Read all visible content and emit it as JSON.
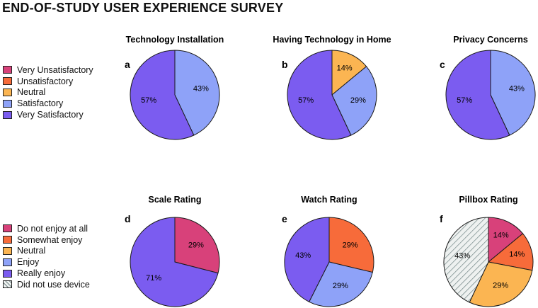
{
  "title": "END-OF-STUDY USER EXPERIENCE SURVEY",
  "legends": {
    "top": [
      {
        "label": "Very Unsatisfactory",
        "color": "#d8417a"
      },
      {
        "label": "Unsatisfactory",
        "color": "#f76b3a"
      },
      {
        "label": "Neutral",
        "color": "#fbb552"
      },
      {
        "label": "Satisfactory",
        "color": "#8ea2f8"
      },
      {
        "label": "Very Satisfactory",
        "color": "#7b5cf0"
      }
    ],
    "bottom": [
      {
        "label": "Do not enjoy at all",
        "color": "#d8417a"
      },
      {
        "label": "Somewhat enjoy",
        "color": "#f76b3a"
      },
      {
        "label": "Neutral",
        "color": "#fbb552"
      },
      {
        "label": "Enjoy",
        "color": "#8ea2f8"
      },
      {
        "label": "Really enjoy",
        "color": "#7b5cf0"
      },
      {
        "label": "Did not use device",
        "color": "#d3d7d7",
        "pattern": "hatch"
      }
    ]
  },
  "chart_data": [
    {
      "type": "pie",
      "letter": "a",
      "title": "Technology Installation",
      "slices": [
        {
          "category": "Satisfactory",
          "value": 43,
          "label": "43%",
          "color": "#8ea2f8"
        },
        {
          "category": "Very Satisfactory",
          "value": 57,
          "label": "57%",
          "color": "#7b5cf0"
        }
      ]
    },
    {
      "type": "pie",
      "letter": "b",
      "title": "Having Technology in Home",
      "slices": [
        {
          "category": "Neutral",
          "value": 14,
          "label": "14%",
          "color": "#fbb552"
        },
        {
          "category": "Satisfactory",
          "value": 29,
          "label": "29%",
          "color": "#8ea2f8"
        },
        {
          "category": "Very Satisfactory",
          "value": 57,
          "label": "57%",
          "color": "#7b5cf0"
        }
      ]
    },
    {
      "type": "pie",
      "letter": "c",
      "title": "Privacy Concerns",
      "slices": [
        {
          "category": "Satisfactory",
          "value": 43,
          "label": "43%",
          "color": "#8ea2f8"
        },
        {
          "category": "Very Satisfactory",
          "value": 57,
          "label": "57%",
          "color": "#7b5cf0"
        }
      ]
    },
    {
      "type": "pie",
      "letter": "d",
      "title": "Scale Rating",
      "slices": [
        {
          "category": "Do not enjoy at all",
          "value": 29,
          "label": "29%",
          "color": "#d8417a"
        },
        {
          "category": "Really enjoy",
          "value": 71,
          "label": "71%",
          "color": "#7b5cf0"
        }
      ]
    },
    {
      "type": "pie",
      "letter": "e",
      "title": "Watch Rating",
      "slices": [
        {
          "category": "Somewhat enjoy",
          "value": 29,
          "label": "29%",
          "color": "#f76b3a"
        },
        {
          "category": "Enjoy",
          "value": 29,
          "label": "29%",
          "color": "#8ea2f8"
        },
        {
          "category": "Really enjoy",
          "value": 43,
          "label": "43%",
          "color": "#7b5cf0"
        }
      ]
    },
    {
      "type": "pie",
      "letter": "f",
      "title": "Pillbox Rating",
      "slices": [
        {
          "category": "Do not enjoy at all",
          "value": 14,
          "label": "14%",
          "color": "#d8417a"
        },
        {
          "category": "Somewhat enjoy",
          "value": 14,
          "label": "14%",
          "color": "#f76b3a"
        },
        {
          "category": "Neutral",
          "value": 29,
          "label": "29%",
          "color": "#fbb552"
        },
        {
          "category": "Did not use device",
          "value": 43,
          "label": "43%",
          "color": "#d3d7d7",
          "pattern": "hatch"
        }
      ]
    }
  ]
}
